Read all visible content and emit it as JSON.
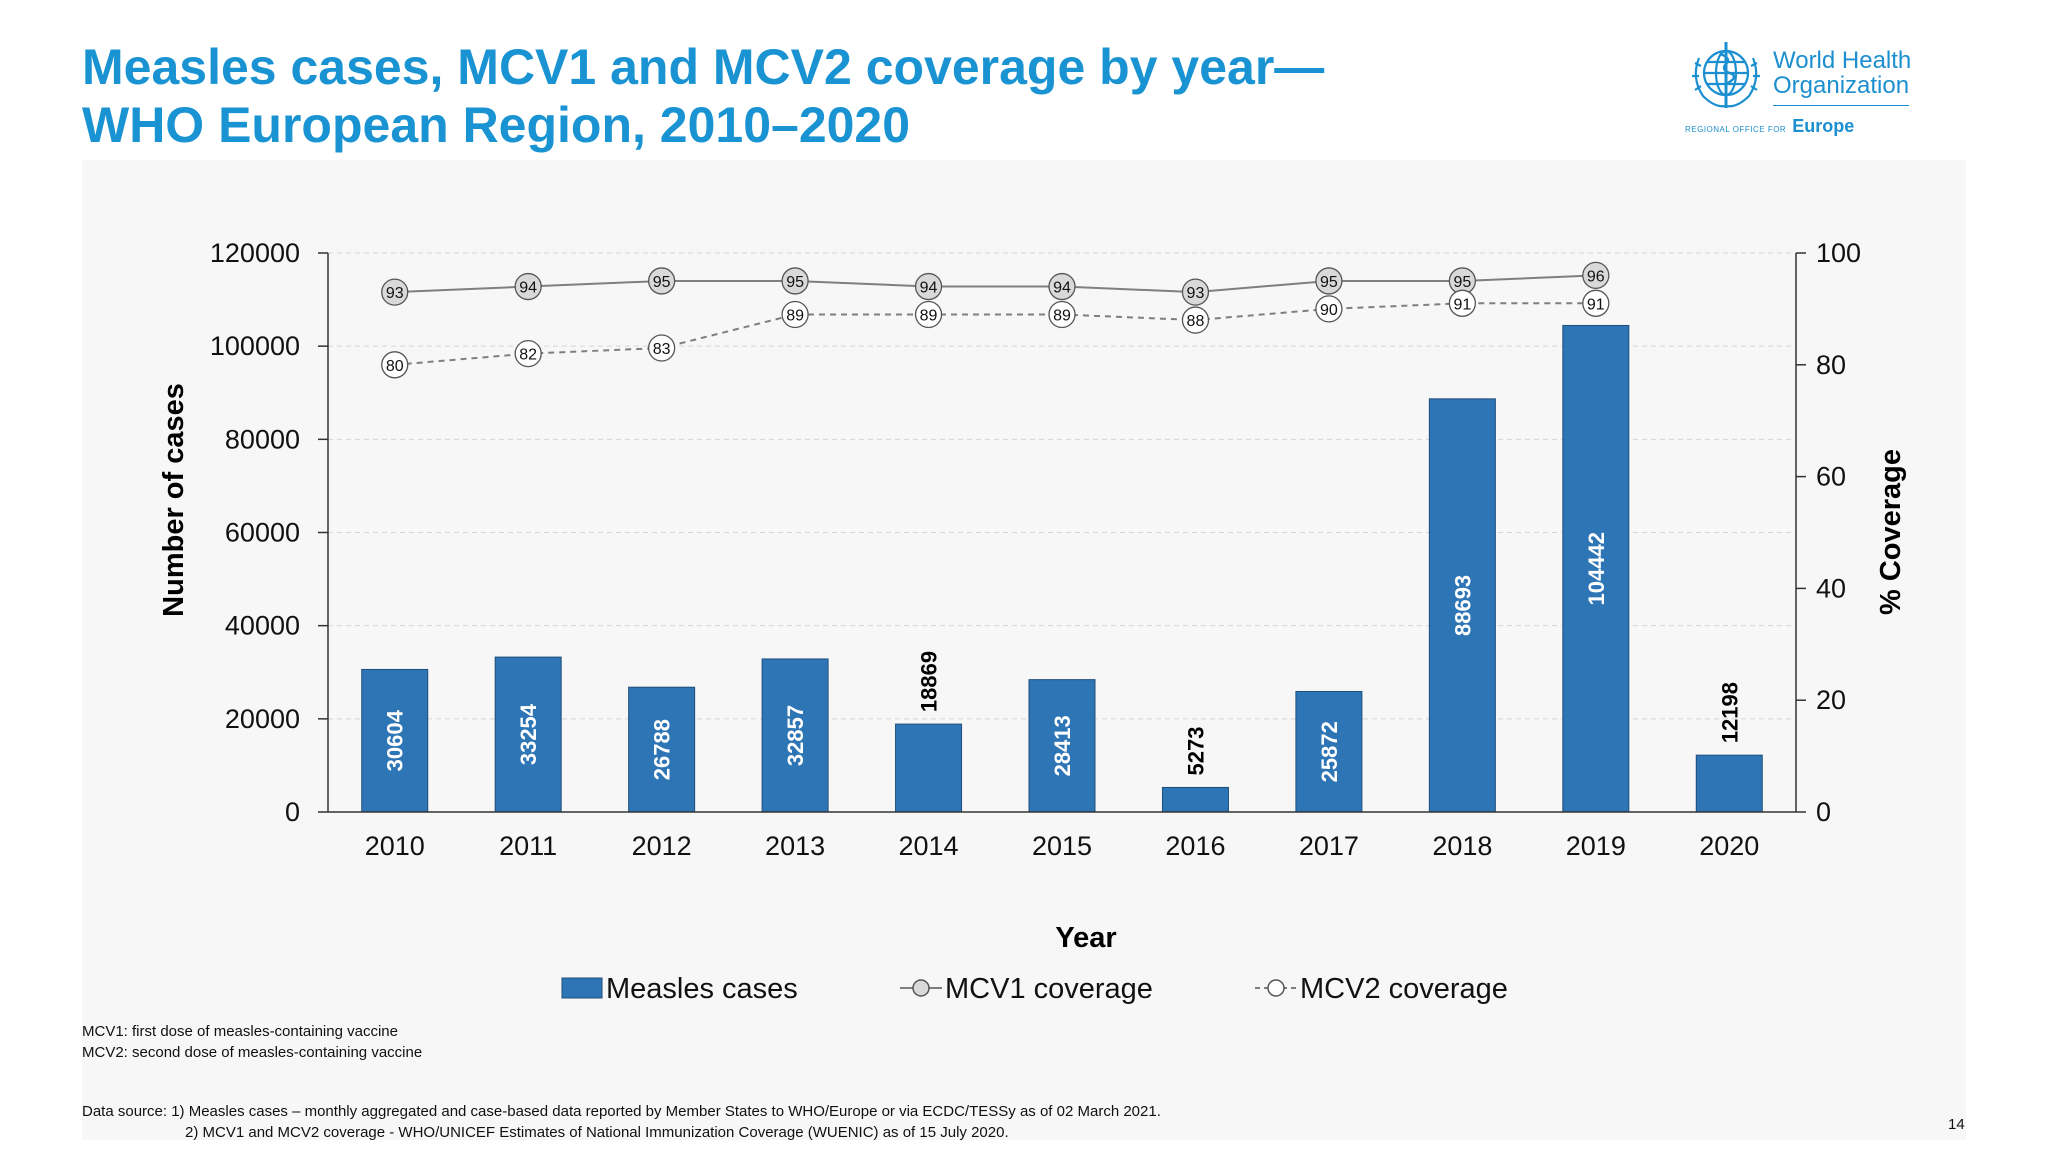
{
  "title": {
    "line1": "Measles cases, MCV1 and MCV2 coverage by year—",
    "line2": "WHO European Region, 2010–2020"
  },
  "logo": {
    "line1": "World Health",
    "line2": "Organization",
    "sub_small": "REGIONAL OFFICE FOR",
    "sub_big": "Europe",
    "icon": "un-emblem-icon"
  },
  "chart_data": {
    "type": "bar",
    "title": "Measles cases, MCV1 and MCV2 coverage by year—WHO European Region, 2010–2020",
    "xlabel": "Year",
    "ylabel": "Number of cases",
    "y2label": "% Coverage",
    "ylim": [
      0,
      120000
    ],
    "y2lim": [
      0,
      100
    ],
    "yticks": [
      "0",
      "20000",
      "40000",
      "60000",
      "80000",
      "100000",
      "120000"
    ],
    "y2ticks": [
      "0",
      "20",
      "40",
      "60",
      "80",
      "100"
    ],
    "categories": [
      "2010",
      "2011",
      "2012",
      "2013",
      "2014",
      "2015",
      "2016",
      "2017",
      "2018",
      "2019",
      "2020"
    ],
    "series": [
      {
        "name": "Measles cases",
        "type": "bar",
        "axis": "left",
        "color": "#2e75b6",
        "values": [
          30604,
          33254,
          26788,
          32857,
          18869,
          28413,
          5273,
          25872,
          88693,
          104442,
          12198
        ]
      },
      {
        "name": "MCV1 coverage",
        "type": "line",
        "axis": "right",
        "color": "#7f7f7f",
        "values": [
          93,
          94,
          95,
          95,
          94,
          94,
          93,
          95,
          95,
          96,
          null
        ]
      },
      {
        "name": "MCV2 coverage",
        "type": "line",
        "axis": "right",
        "color": "#7f7f7f",
        "dashed": true,
        "values": [
          80,
          82,
          83,
          89,
          89,
          89,
          88,
          90,
          91,
          91,
          null
        ]
      }
    ],
    "legend": [
      "Measles cases",
      "MCV1 coverage",
      "MCV2 coverage"
    ],
    "legend_position": "bottom",
    "grid": true
  },
  "footnotes": {
    "mcv1": "MCV1: first dose of measles-containing vaccine",
    "mcv2": "MCV2: second dose of measles-containing vaccine",
    "source1": "Data source: 1) Measles cases – monthly aggregated and case-based data reported by Member States to WHO/Europe or via ECDC/TESSy as of 02 March 2021.",
    "source2": "2) MCV1 and MCV2 coverage - WHO/UNICEF Estimates of National Immunization Coverage (WUENIC)  as of 15 July 2020."
  },
  "page_number": "14"
}
